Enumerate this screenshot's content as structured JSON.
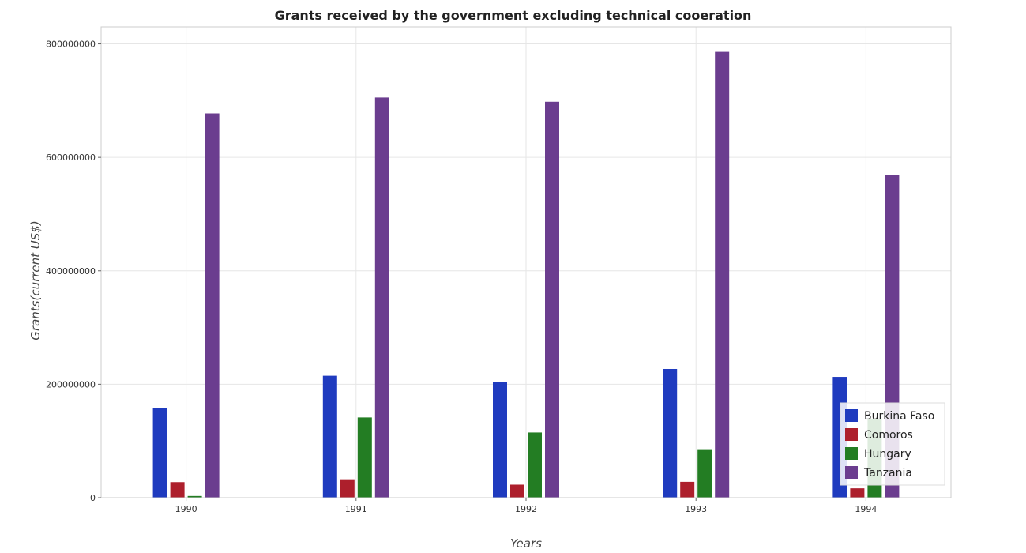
{
  "chart_data": {
    "type": "bar",
    "title": "Grants received by the government excluding technical cooeration",
    "xlabel": "Years",
    "ylabel": "Grants(current US$)",
    "categories": [
      "1990",
      "1991",
      "1992",
      "1993",
      "1994"
    ],
    "ylim": [
      0,
      830000000
    ],
    "yticks": [
      0,
      200000000,
      400000000,
      600000000,
      800000000
    ],
    "ytick_labels": [
      "0",
      "200000000",
      "400000000",
      "600000000",
      "800000000"
    ],
    "grid": true,
    "legend_position": "bottom-right",
    "series": [
      {
        "name": "Burkina Faso",
        "color": "#1f3bbf",
        "values": [
          158000000,
          215000000,
          204000000,
          227000000,
          213000000
        ]
      },
      {
        "name": "Comoros",
        "color": "#ad1f2c",
        "values": [
          27500000,
          32500000,
          23000000,
          28000000,
          16500000
        ]
      },
      {
        "name": "Hungary",
        "color": "#237d23",
        "values": [
          3000000,
          141500000,
          115000000,
          85500000,
          139500000
        ]
      },
      {
        "name": "Tanzania",
        "color": "#6b3d8f",
        "values": [
          677500000,
          705500000,
          698000000,
          786000000,
          568500000
        ]
      }
    ]
  }
}
